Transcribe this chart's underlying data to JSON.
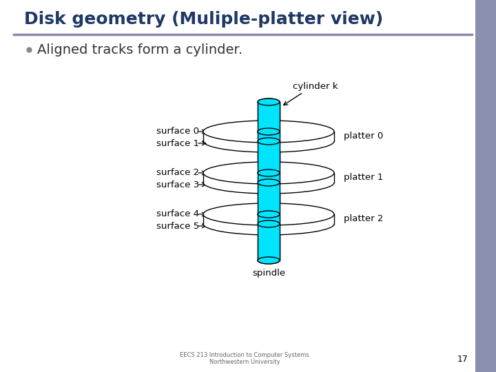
{
  "title": "Disk geometry (Muliple-platter view)",
  "title_color": "#1F3864",
  "title_fontsize": 18,
  "bullet_text": "Aligned tracks form a cylinder.",
  "bullet_fontsize": 14,
  "bullet_color": "#333333",
  "bg_color": "#FFFFFF",
  "right_panel_color": "#8B8FAF",
  "spindle_color": "#00E5FF",
  "spindle_edge_color": "#000000",
  "disk_edge_color": "#000000",
  "cylinder_label": "cylinder k",
  "spindle_label": "spindle",
  "surface_labels": [
    "surface 0",
    "surface 1",
    "surface 2",
    "surface 3",
    "surface 4",
    "surface 5"
  ],
  "platter_labels": [
    "platter 0",
    "platter 1",
    "platter 2"
  ],
  "footer_line1": "EECS 213 Introduction to Computer Systems",
  "footer_line2": "Northwestern University",
  "page_number": "17"
}
